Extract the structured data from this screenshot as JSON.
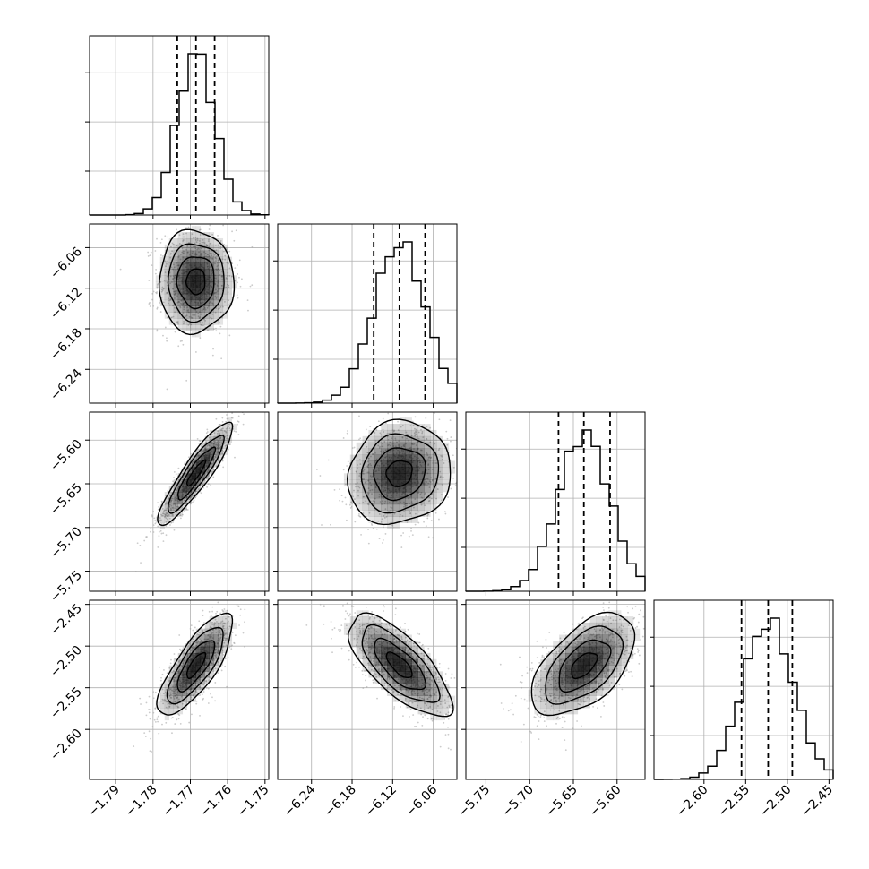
{
  "chart_data": {
    "type": "corner",
    "parameters": [
      {
        "index": 0,
        "median": -1.7685,
        "q16": -1.7735,
        "q84": -1.7635,
        "hist_range": [
          -1.797,
          -1.749
        ],
        "plot_range": [
          -1.797,
          -1.749
        ],
        "ticks": [
          -1.79,
          -1.78,
          -1.77,
          -1.76,
          -1.75
        ],
        "tick_labels": [
          "−1.79",
          "−1.78",
          "−1.77",
          "−1.76",
          "−1.75"
        ]
      },
      {
        "index": 1,
        "median": -6.11,
        "q16": -6.148,
        "q84": -6.072,
        "hist_range": [
          -6.29,
          -6.025
        ],
        "plot_range": [
          -6.29,
          -6.025
        ],
        "ticks": [
          -6.24,
          -6.18,
          -6.12,
          -6.06
        ],
        "tick_labels": [
          "−6.24",
          "−6.18",
          "−6.12",
          "−6.06"
        ]
      },
      {
        "index": 2,
        "median": -5.638,
        "q16": -5.667,
        "q84": -5.608,
        "hist_range": [
          -5.773,
          -5.568
        ],
        "plot_range": [
          -5.773,
          -5.568
        ],
        "ticks": [
          -5.75,
          -5.7,
          -5.65,
          -5.6
        ],
        "tick_labels": [
          "−5.75",
          "−5.70",
          "−5.65",
          "−5.60"
        ]
      },
      {
        "index": 3,
        "median": -2.523,
        "q16": -2.555,
        "q84": -2.494,
        "hist_range": [
          -2.66,
          -2.445
        ],
        "plot_range": [
          -2.66,
          -2.445
        ],
        "ticks": [
          -2.6,
          -2.55,
          -2.5,
          -2.45
        ],
        "tick_labels": [
          "−2.60",
          "−2.55",
          "−2.50",
          "−2.45"
        ]
      }
    ],
    "correlations": [
      {
        "row": 1,
        "col": 0,
        "rho": 0.0
      },
      {
        "row": 2,
        "col": 0,
        "rho": 0.9
      },
      {
        "row": 2,
        "col": 1,
        "rho": 0.1
      },
      {
        "row": 3,
        "col": 0,
        "rho": 0.78
      },
      {
        "row": 3,
        "col": 1,
        "rho": -0.72
      },
      {
        "row": 3,
        "col": 2,
        "rho": 0.55
      }
    ],
    "grid": true,
    "colors": {
      "line": "#000000",
      "grid": "#b0b0b0",
      "scatter": "#a0a0a0",
      "density": "#000000"
    }
  }
}
